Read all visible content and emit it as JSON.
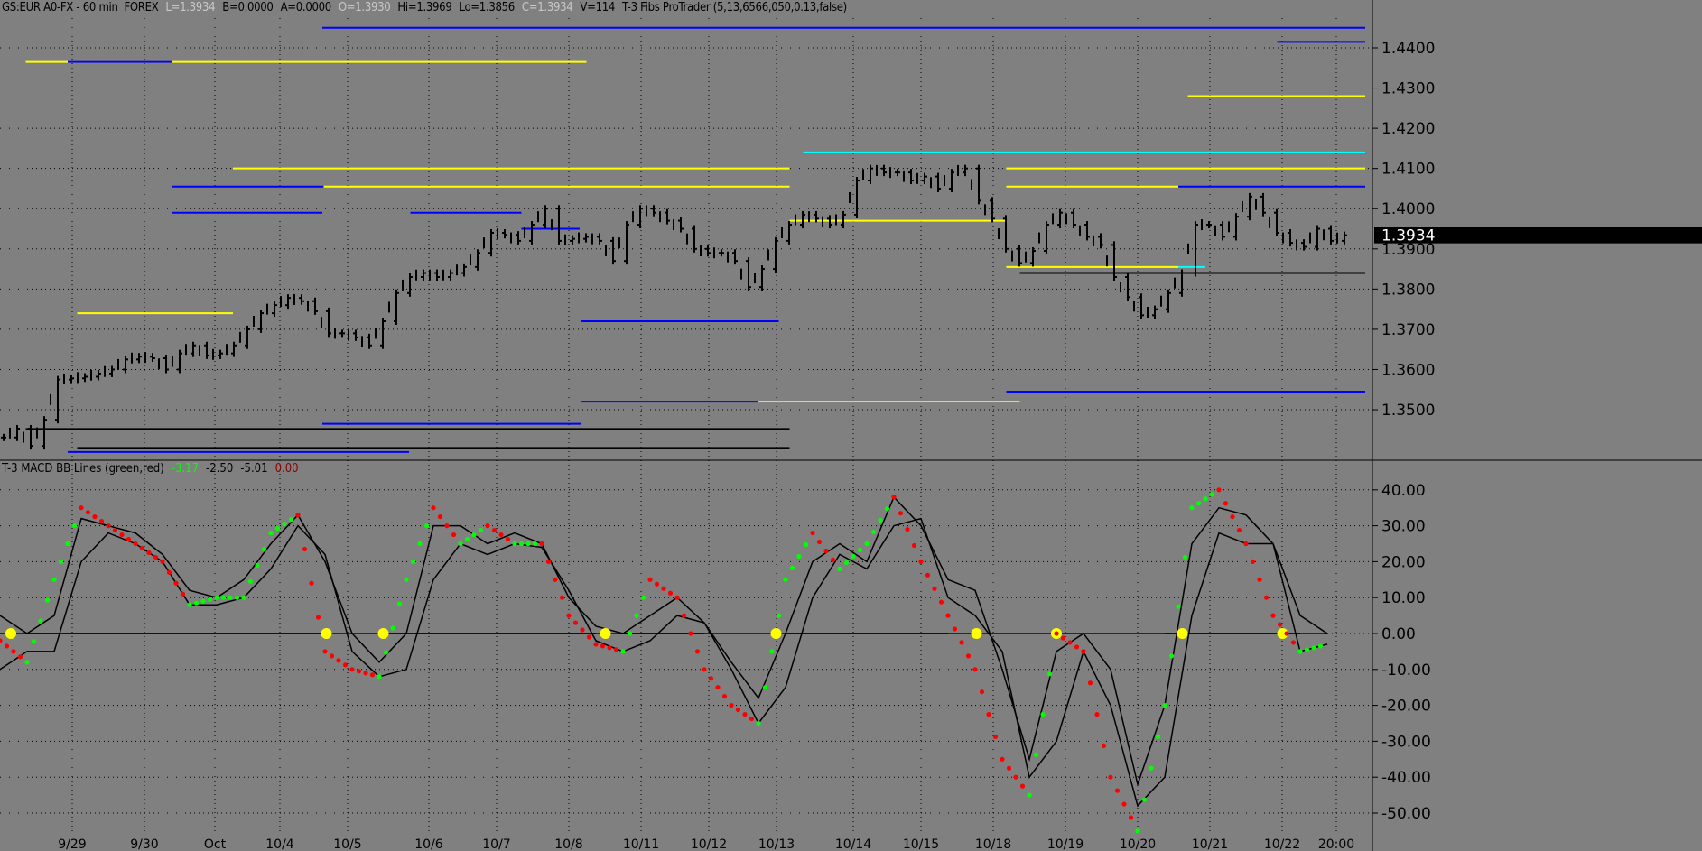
{
  "header": {
    "symbol": "GS:EUR A0-FX - 60 min  FOREX",
    "last": "L=1.3934",
    "bid": "B=0.0000",
    "ask": "A=0.0000",
    "open": "O=1.3930",
    "high": "Hi=1.3969",
    "low": "Lo=1.3856",
    "close": "C=1.3934",
    "volume": "V=114",
    "study": "T-3 Fibs ProTrader (5,13,6566,050,0.13,false)"
  },
  "macd_header": {
    "title": "T-3 MACD BB Lines (green,red)",
    "v1": "-3.17",
    "v2": "-2.50",
    "v3": "-5.01",
    "v4": "0.00"
  },
  "colors": {
    "background": "#808080",
    "bars": "#000000",
    "rising_dot": "#00ff00",
    "falling_dot": "#ff0000",
    "zero_line_pos": "#0000a0",
    "zero_line_neg": "#8b0000",
    "cross_marker": "#ffff00"
  },
  "chart_data": [
    {
      "type": "line",
      "title": "GS:EUR A0-FX - 60 min",
      "x_ticks": [
        "9/29",
        "9/30",
        "Oct",
        "10/4",
        "10/5",
        "10/6",
        "10/7",
        "10/8",
        "10/11",
        "10/12",
        "10/13",
        "10/14",
        "10/15",
        "10/18",
        "10/19",
        "10/20",
        "10/21",
        "10/22",
        "20:00"
      ],
      "y_ticks": [
        "1.4400",
        "1.4300",
        "1.4200",
        "1.4100",
        "1.4000",
        "1.3900",
        "1.3800",
        "1.3700",
        "1.3600",
        "1.3500"
      ],
      "ylim": [
        1.338,
        1.452
      ],
      "last_price": "1.3934",
      "grid": true,
      "closes": [
        1.3431,
        1.3453,
        1.341,
        1.3475,
        1.3575,
        1.3578,
        1.3582,
        1.359,
        1.36,
        1.3625,
        1.3632,
        1.3628,
        1.36,
        1.364,
        1.366,
        1.3635,
        1.364,
        1.366,
        1.37,
        1.374,
        1.376,
        1.3778,
        1.377,
        1.3745,
        1.369,
        1.369,
        1.368,
        1.366,
        1.372,
        1.379,
        1.383,
        1.384,
        1.383,
        1.384,
        1.3855,
        1.389,
        1.394,
        1.3935,
        1.392,
        1.396,
        1.4,
        1.392,
        1.3925,
        1.393,
        1.392,
        1.387,
        1.396,
        1.4,
        1.399,
        1.397,
        1.395,
        1.39,
        1.389,
        1.389,
        1.387,
        1.3805,
        1.385,
        1.392,
        1.396,
        1.3985,
        1.3975,
        1.396,
        1.3985,
        1.407,
        1.41,
        1.409,
        1.409,
        1.407,
        1.408,
        1.405,
        1.409,
        1.41,
        1.402,
        1.3975,
        1.39,
        1.3865,
        1.3895,
        1.396,
        1.399,
        1.396,
        1.393,
        1.391,
        1.383,
        1.378,
        1.3735,
        1.375,
        1.379,
        1.384,
        1.396,
        1.396,
        1.393,
        1.398,
        1.403,
        1.399,
        1.394,
        1.3915,
        1.3905,
        1.395,
        1.392,
        1.3934
      ],
      "fib_levels": [
        {
          "price": 1.445,
          "from_bar": 23.8,
          "to_bar": 100.8,
          "color": "#0000ff"
        },
        {
          "price": 1.4415,
          "from_bar": 94.3,
          "to_bar": 100.8,
          "color": "#0000ff"
        },
        {
          "price": 1.4365,
          "from_bar": 1.9,
          "to_bar": 43.3,
          "color": "#ffff00"
        },
        {
          "price": 1.4365,
          "from_bar": 5.0,
          "to_bar": 12.7,
          "color": "#0000ff"
        },
        {
          "price": 1.428,
          "from_bar": 87.7,
          "to_bar": 100.8,
          "color": "#ffff00"
        },
        {
          "price": 1.414,
          "from_bar": 59.3,
          "to_bar": 100.8,
          "color": "#00ffff"
        },
        {
          "price": 1.41,
          "from_bar": 17.2,
          "to_bar": 58.3,
          "color": "#ffff00"
        },
        {
          "price": 1.41,
          "from_bar": 74.3,
          "to_bar": 100.8,
          "color": "#ffff00"
        },
        {
          "price": 1.4055,
          "from_bar": 23.9,
          "to_bar": 58.3,
          "color": "#ffff00"
        },
        {
          "price": 1.4055,
          "from_bar": 12.7,
          "to_bar": 23.9,
          "color": "#0000ff"
        },
        {
          "price": 1.4055,
          "from_bar": 74.3,
          "to_bar": 87.0,
          "color": "#ffff00"
        },
        {
          "price": 1.4055,
          "from_bar": 87.0,
          "to_bar": 100.8,
          "color": "#0000ff"
        },
        {
          "price": 1.399,
          "from_bar": 12.7,
          "to_bar": 23.8,
          "color": "#0000ff"
        },
        {
          "price": 1.399,
          "from_bar": 30.3,
          "to_bar": 38.5,
          "color": "#0000ff"
        },
        {
          "price": 1.395,
          "from_bar": 38.5,
          "to_bar": 42.8,
          "color": "#0000ff"
        },
        {
          "price": 1.397,
          "from_bar": 58.3,
          "to_bar": 74.3,
          "color": "#ffff00"
        },
        {
          "price": 1.3855,
          "from_bar": 74.3,
          "to_bar": 87.0,
          "color": "#ffff00"
        },
        {
          "price": 1.3855,
          "from_bar": 87.0,
          "to_bar": 89.0,
          "color": "#00ffff"
        },
        {
          "price": 1.384,
          "from_bar": 75.3,
          "to_bar": 100.8,
          "color": "#000000"
        },
        {
          "price": 1.374,
          "from_bar": 5.7,
          "to_bar": 17.2,
          "color": "#ffff00"
        },
        {
          "price": 1.372,
          "from_bar": 42.9,
          "to_bar": 57.5,
          "color": "#0000ff"
        },
        {
          "price": 1.3545,
          "from_bar": 74.3,
          "to_bar": 100.8,
          "color": "#0000ff"
        },
        {
          "price": 1.352,
          "from_bar": 42.9,
          "to_bar": 75.3,
          "color": "#0000ff"
        },
        {
          "price": 1.352,
          "from_bar": 56.0,
          "to_bar": 75.3,
          "color": "#ffff00"
        },
        {
          "price": 1.3465,
          "from_bar": 23.8,
          "to_bar": 42.9,
          "color": "#0000ff"
        },
        {
          "price": 1.3452,
          "from_bar": 1.9,
          "to_bar": 58.3,
          "color": "#000000"
        },
        {
          "price": 1.3405,
          "from_bar": 5.7,
          "to_bar": 58.3,
          "color": "#000000"
        },
        {
          "price": 1.3395,
          "from_bar": 5.0,
          "to_bar": 30.2,
          "color": "#0000ff"
        }
      ]
    },
    {
      "type": "line",
      "title": "T-3 MACD BB Lines (green,red)",
      "y_ticks": [
        "40.00",
        "30.00",
        "20.00",
        "10.00",
        "0.00",
        "-10.00",
        "-20.00",
        "-30.00",
        "-40.00",
        "-50.00"
      ],
      "ylim": [
        -55,
        45
      ],
      "grid": true,
      "macd": [
        -2,
        -8,
        15,
        35,
        30,
        25,
        20,
        8,
        10,
        10,
        28,
        33,
        -5,
        -10,
        -12,
        15,
        35,
        25,
        30,
        25,
        25,
        5,
        -3,
        -5,
        15,
        10,
        -10,
        -20,
        -25,
        15,
        28,
        18,
        25,
        38,
        20,
        5,
        -10,
        -35,
        -45,
        0,
        -5,
        -40,
        -55,
        -20,
        35,
        40,
        25,
        5,
        -5,
        -3
      ],
      "upper_band": [
        5,
        0,
        5,
        32,
        30,
        28,
        22,
        12,
        10,
        15,
        25,
        33,
        20,
        0,
        -8,
        0,
        30,
        30,
        25,
        28,
        25,
        10,
        2,
        0,
        5,
        10,
        3,
        -8,
        -18,
        0,
        20,
        25,
        20,
        38,
        30,
        15,
        12,
        -10,
        -35,
        -5,
        0,
        -10,
        -42,
        -20,
        25,
        35,
        33,
        25,
        5,
        0
      ],
      "lower_band": [
        -10,
        -5,
        -5,
        20,
        28,
        25,
        20,
        8,
        8,
        10,
        18,
        30,
        22,
        -5,
        -12,
        -10,
        15,
        25,
        22,
        25,
        24,
        12,
        -2,
        -5,
        -2,
        5,
        3,
        -10,
        -25,
        -15,
        10,
        22,
        18,
        30,
        32,
        10,
        5,
        -5,
        -40,
        -30,
        -5,
        -20,
        -48,
        -40,
        5,
        28,
        25,
        25,
        -5,
        -3
      ],
      "zero_crossings_bar": [
        0.8,
        24.1,
        28.3,
        44.7,
        57.3,
        72.1,
        78.0,
        87.3,
        94.7
      ]
    }
  ]
}
